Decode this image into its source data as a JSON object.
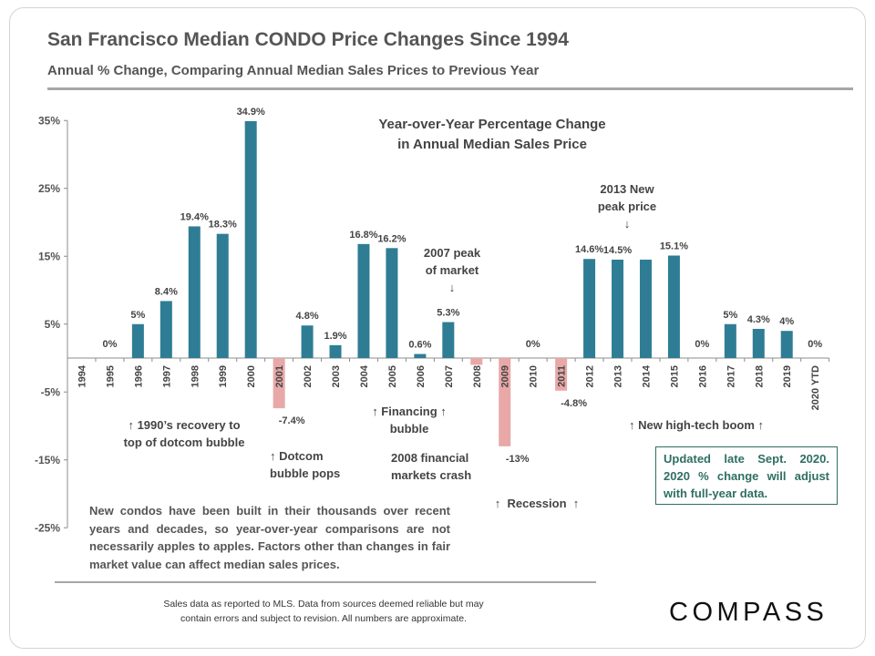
{
  "header": {
    "title": "San Francisco Median CONDO Price Changes Since 1994",
    "subtitle": "Annual % Change, Comparing Annual Median Sales Prices to Previous Year"
  },
  "chart_data": {
    "type": "bar",
    "title": "Year-over-Year Percentage Change in Annual Median Sales Price",
    "title_lines": [
      "Year-over-Year Percentage Change",
      "in Annual Median Sales Price"
    ],
    "categories": [
      "1994",
      "1995",
      "1996",
      "1997",
      "1998",
      "1999",
      "2000",
      "2001",
      "2002",
      "2003",
      "2004",
      "2005",
      "2006",
      "2007",
      "2008",
      "2009",
      "2010",
      "2011",
      "2012",
      "2013",
      "2014",
      "2015",
      "2016",
      "2017",
      "2018",
      "2019",
      "2020 YTD"
    ],
    "values": [
      null,
      0,
      5,
      8.4,
      19.4,
      18.3,
      34.9,
      -7.4,
      4.8,
      1.9,
      16.8,
      16.2,
      0.6,
      5.3,
      -1,
      -13,
      0,
      -4.8,
      14.6,
      14.5,
      14.5,
      15.1,
      0,
      5,
      4.3,
      4,
      0
    ],
    "data_labels": [
      "",
      "0%",
      "5%",
      "8.4%",
      "19.4%",
      "18.3%",
      "34.9%",
      "-7.4%",
      "4.8%",
      "1.9%",
      "16.8%",
      "16.2%",
      "0.6%",
      "5.3%",
      "",
      "-13%",
      "0%",
      "-4.8%",
      "14.6%",
      "14.5%",
      "",
      "15.1%",
      "0%",
      "5%",
      "4.3%",
      "4%",
      "0%"
    ],
    "ylim": [
      -25,
      35
    ],
    "yticks": [
      "35%",
      "25%",
      "15%",
      "5%",
      "-5%",
      "-15%",
      "-25%"
    ],
    "ytick_values": [
      35,
      25,
      15,
      5,
      -5,
      -15,
      -25
    ],
    "colors": {
      "positive": "#2e7d94",
      "negative": "#e8a8a8"
    },
    "grid": false
  },
  "annotations": {
    "recovery": [
      "↑ 1990’s recovery to",
      "top of dotcom bubble"
    ],
    "dotcom": [
      "↑ Dotcom",
      "bubble pops"
    ],
    "financing": [
      "↑ Financing ↑",
      "bubble"
    ],
    "peak2007": [
      "2007 peak",
      "of market",
      "↓"
    ],
    "crash2008": [
      "2008 financial",
      "markets crash"
    ],
    "recession": "↑  Recession  ↑",
    "peak2013": [
      "2013 New",
      "peak price",
      "↓"
    ],
    "hightech": "↑ New high-tech boom ↑"
  },
  "note_box": "Updated late Sept. 2020. 2020 % change will adjust with full-year data.",
  "paragraph": "New condos have been built in their thousands over recent years and decades, so year-over-year comparisons are not necessarily apples to apples. Factors other than changes in fair market value can affect median sales prices.",
  "footer": [
    "Sales data as reported to MLS. Data from sources deemed reliable but may",
    "contain errors and subject to revision. All numbers are approximate."
  ],
  "logo": "COMPASS"
}
